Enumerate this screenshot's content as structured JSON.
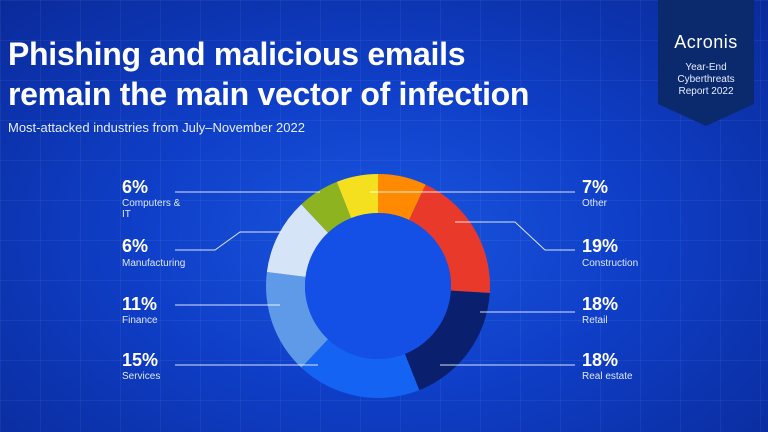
{
  "header": {
    "title_line1": "Phishing and malicious emails",
    "title_line2": "remain the main vector of infection",
    "subtitle": "Most-attacked industries from July–November 2022"
  },
  "badge": {
    "brand": "Acronis",
    "line1": "Year-End",
    "line2": "Cyberthreats",
    "line3": "Report 2022"
  },
  "chart_data": {
    "type": "pie",
    "variant": "donut",
    "slices": [
      {
        "label": "Other",
        "value": 7,
        "display": "7%",
        "color": "#ff8a00"
      },
      {
        "label": "Construction",
        "value": 19,
        "display": "19%",
        "color": "#e8392b"
      },
      {
        "label": "Retail",
        "value": 18,
        "display": "18%",
        "color": "#0a1f6e"
      },
      {
        "label": "Real estate",
        "value": 18,
        "display": "18%",
        "color": "#1463f2"
      },
      {
        "label": "Services",
        "value": 15,
        "display": "15%",
        "color": "#5e9ae8"
      },
      {
        "label": "Finance",
        "value": 11,
        "display": "11%",
        "color": "#d6e4f7"
      },
      {
        "label": "Manufacturing",
        "value": 6,
        "display": "6%",
        "color": "#8db320"
      },
      {
        "label": "Computers & IT",
        "value": 6,
        "display": "6%",
        "color": "#f5e020"
      }
    ]
  }
}
